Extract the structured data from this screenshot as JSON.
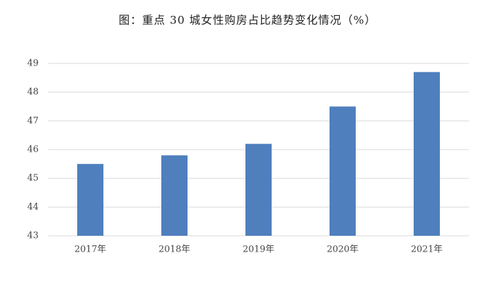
{
  "chart_data": {
    "type": "bar",
    "title": "图：重点 30 城女性购房占比趋势变化情况（%）",
    "categories": [
      "2017年",
      "2018年",
      "2019年",
      "2020年",
      "2021年"
    ],
    "values": [
      45.5,
      45.8,
      46.2,
      47.5,
      48.7
    ],
    "color": "#4f7fbd",
    "ylim": [
      43,
      49
    ],
    "yticks": [
      43,
      44,
      45,
      46,
      47,
      48,
      49
    ],
    "grid": true
  }
}
